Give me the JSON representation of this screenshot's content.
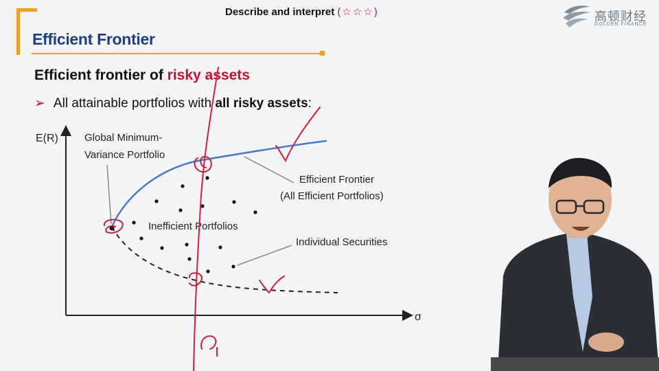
{
  "header": {
    "title": "Describe and interpret",
    "stars": "(☆☆☆)"
  },
  "slide": {
    "title": "Efficient Frontier",
    "subheading_prefix": "Efficient frontier of ",
    "subheading_highlight": "risky assets",
    "bullet_prefix": "All attainable portfolios with ",
    "bullet_emphasis": "all risky assets",
    "bullet_suffix": ":"
  },
  "logo": {
    "cn": "高顿财经",
    "en": "GOLDEN FINANCE"
  },
  "diagram": {
    "y_axis_label": "E(R)",
    "x_axis_label": "σ",
    "gmv_label_line1": "Global Minimum-",
    "gmv_label_line2": "Variance Portfolio",
    "frontier_label_line1": "Efficient Frontier",
    "frontier_label_line2": "(All Efficient Portfolios)",
    "inefficient_label": "Inefficient Portfolios",
    "securities_label": "Individual Securities",
    "frontier_color": "#4a78c8",
    "annotation_color": "#d21d3c"
  },
  "colors": {
    "accent": "#f0a01e",
    "title_blue": "#1c3f86",
    "highlight_red": "#c8102e"
  }
}
